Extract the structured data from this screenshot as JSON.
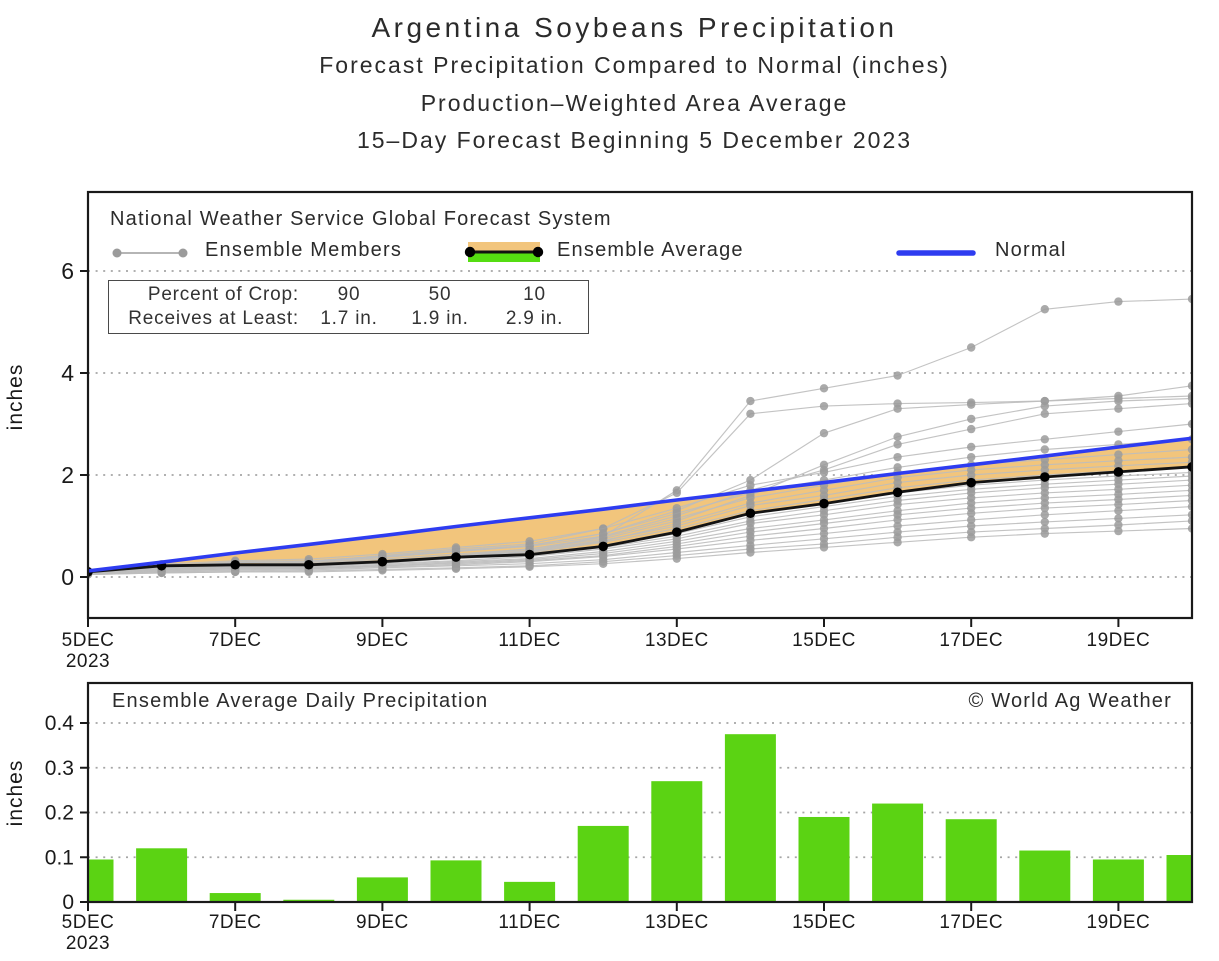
{
  "titles": {
    "main": "Argentina Soybeans Precipitation",
    "sub1": "Forecast Precipitation Compared to Normal (inches)",
    "sub2": "Production–Weighted Area Average",
    "sub3": "15–Day Forecast Beginning 5 December 2023"
  },
  "legend": {
    "header": "National Weather Service Global Forecast System",
    "members_label": "Ensemble Members",
    "average_label": "Ensemble Average",
    "normal_label": "Normal"
  },
  "crop_box": {
    "row1_label": "Percent of Crop:",
    "row2_label": "Receives at Least:",
    "cols": [
      {
        "pct": "90",
        "amt": "1.7 in."
      },
      {
        "pct": "50",
        "amt": "1.9 in."
      },
      {
        "pct": "10",
        "amt": "2.9 in."
      }
    ]
  },
  "colors": {
    "normal_line": "#2e3cf0",
    "ensemble_average_line": "#141414",
    "ensemble_member_line": "#bcbcbc",
    "ensemble_member_marker": "#9b9b9b",
    "deficit_band": "#f2c57c",
    "surplus_band": "#55dd11",
    "bar_fill": "#5bd313",
    "grid": "#8f8f8f",
    "frame": "#1a1a1a"
  },
  "axis": {
    "ylabel": "inches",
    "x_ticks": [
      {
        "day": 5,
        "label": "5DEC",
        "year": "2023"
      },
      {
        "day": 7,
        "label": "7DEC"
      },
      {
        "day": 9,
        "label": "9DEC"
      },
      {
        "day": 11,
        "label": "11DEC"
      },
      {
        "day": 13,
        "label": "13DEC"
      },
      {
        "day": 15,
        "label": "15DEC"
      },
      {
        "day": 17,
        "label": "17DEC"
      },
      {
        "day": 19,
        "label": "19DEC"
      }
    ]
  },
  "chart_data": [
    {
      "type": "line",
      "title": "Forecast cumulative precipitation vs normal",
      "ylabel": "inches",
      "ylim": [
        -0.8,
        7.55
      ],
      "yticks": [
        0,
        2,
        4,
        6
      ],
      "grid": "dotted horizontal",
      "legend_position": "top inside",
      "x_days": [
        5,
        6,
        7,
        8,
        9,
        10,
        11,
        12,
        13,
        14,
        15,
        16,
        17,
        18,
        19,
        20
      ],
      "series": [
        {
          "name": "Normal",
          "values": [
            0.12,
            0.29,
            0.47,
            0.64,
            0.81,
            0.99,
            1.16,
            1.33,
            1.51,
            1.68,
            1.85,
            2.03,
            2.2,
            2.37,
            2.55,
            2.72
          ]
        },
        {
          "name": "Ensemble Average",
          "values": [
            0.1,
            0.22,
            0.24,
            0.24,
            0.3,
            0.39,
            0.44,
            0.6,
            0.88,
            1.25,
            1.44,
            1.66,
            1.85,
            1.96,
            2.06,
            2.16
          ]
        }
      ],
      "ensemble_members": [
        [
          0.1,
          0.18,
          0.22,
          0.24,
          0.3,
          0.4,
          0.5,
          0.8,
          1.7,
          3.45,
          3.7,
          3.95,
          4.5,
          5.25,
          5.4,
          5.45
        ],
        [
          0.1,
          0.2,
          0.28,
          0.3,
          0.42,
          0.55,
          0.65,
          0.95,
          1.65,
          3.2,
          3.35,
          3.4,
          3.42,
          3.45,
          3.55,
          3.75
        ],
        [
          0.1,
          0.22,
          0.3,
          0.32,
          0.4,
          0.5,
          0.62,
          0.85,
          1.3,
          1.9,
          2.82,
          3.3,
          3.38,
          3.45,
          3.5,
          3.55
        ],
        [
          0.1,
          0.15,
          0.2,
          0.22,
          0.3,
          0.42,
          0.55,
          0.75,
          1.1,
          1.6,
          2.2,
          2.75,
          3.1,
          3.35,
          3.45,
          3.5
        ],
        [
          0.1,
          0.2,
          0.25,
          0.28,
          0.38,
          0.5,
          0.6,
          0.8,
          1.2,
          1.7,
          2.1,
          2.6,
          2.9,
          3.2,
          3.3,
          3.4
        ],
        [
          0.12,
          0.25,
          0.32,
          0.35,
          0.45,
          0.58,
          0.7,
          0.95,
          1.35,
          1.8,
          2.05,
          2.35,
          2.55,
          2.7,
          2.85,
          3.0
        ],
        [
          0.1,
          0.2,
          0.28,
          0.3,
          0.4,
          0.52,
          0.62,
          0.85,
          1.25,
          1.65,
          1.9,
          2.15,
          2.35,
          2.5,
          2.6,
          2.7
        ],
        [
          0.1,
          0.18,
          0.24,
          0.26,
          0.35,
          0.45,
          0.55,
          0.78,
          1.15,
          1.55,
          1.8,
          2.05,
          2.2,
          2.3,
          2.4,
          2.5
        ],
        [
          0.08,
          0.15,
          0.2,
          0.22,
          0.3,
          0.4,
          0.5,
          0.7,
          1.05,
          1.45,
          1.7,
          1.95,
          2.1,
          2.2,
          2.28,
          2.35
        ],
        [
          0.1,
          0.2,
          0.25,
          0.25,
          0.32,
          0.42,
          0.52,
          0.72,
          1.0,
          1.4,
          1.6,
          1.85,
          2.0,
          2.1,
          2.18,
          2.25
        ],
        [
          0.08,
          0.16,
          0.22,
          0.24,
          0.32,
          0.4,
          0.48,
          0.68,
          0.95,
          1.3,
          1.52,
          1.75,
          1.9,
          2.0,
          2.08,
          2.15
        ],
        [
          0.1,
          0.18,
          0.22,
          0.24,
          0.3,
          0.38,
          0.46,
          0.62,
          0.9,
          1.25,
          1.45,
          1.65,
          1.8,
          1.9,
          1.98,
          2.05
        ],
        [
          0.08,
          0.15,
          0.2,
          0.2,
          0.28,
          0.36,
          0.44,
          0.6,
          0.85,
          1.18,
          1.38,
          1.58,
          1.72,
          1.82,
          1.9,
          1.98
        ],
        [
          0.1,
          0.16,
          0.2,
          0.22,
          0.28,
          0.36,
          0.42,
          0.58,
          0.8,
          1.1,
          1.3,
          1.5,
          1.65,
          1.75,
          1.82,
          1.9
        ],
        [
          0.08,
          0.14,
          0.18,
          0.2,
          0.26,
          0.32,
          0.4,
          0.55,
          0.75,
          1.05,
          1.22,
          1.42,
          1.55,
          1.65,
          1.72,
          1.8
        ],
        [
          0.08,
          0.14,
          0.18,
          0.18,
          0.24,
          0.3,
          0.36,
          0.5,
          0.7,
          0.95,
          1.12,
          1.3,
          1.45,
          1.55,
          1.62,
          1.7
        ],
        [
          0.06,
          0.12,
          0.16,
          0.18,
          0.22,
          0.28,
          0.34,
          0.46,
          0.65,
          0.88,
          1.05,
          1.22,
          1.35,
          1.45,
          1.52,
          1.6
        ],
        [
          0.08,
          0.12,
          0.16,
          0.16,
          0.22,
          0.26,
          0.32,
          0.42,
          0.6,
          0.8,
          0.95,
          1.12,
          1.25,
          1.35,
          1.42,
          1.5
        ],
        [
          0.06,
          0.1,
          0.14,
          0.16,
          0.2,
          0.24,
          0.3,
          0.4,
          0.55,
          0.72,
          0.85,
          1.0,
          1.12,
          1.22,
          1.3,
          1.38
        ],
        [
          0.06,
          0.1,
          0.12,
          0.14,
          0.18,
          0.22,
          0.26,
          0.34,
          0.48,
          0.62,
          0.75,
          0.88,
          1.0,
          1.08,
          1.15,
          1.22
        ],
        [
          0.05,
          0.08,
          0.1,
          0.12,
          0.15,
          0.18,
          0.22,
          0.3,
          0.42,
          0.55,
          0.65,
          0.78,
          0.88,
          0.95,
          1.02,
          1.1
        ],
        [
          0.05,
          0.08,
          0.1,
          0.1,
          0.13,
          0.16,
          0.2,
          0.26,
          0.36,
          0.48,
          0.58,
          0.68,
          0.78,
          0.85,
          0.9,
          0.95
        ]
      ]
    },
    {
      "type": "bar",
      "title": "Ensemble Average Daily Precipitation",
      "watermark": "© World Ag Weather",
      "ylabel": "inches",
      "ylim": [
        0,
        0.487
      ],
      "yticks": [
        {
          "v": 0.0,
          "label": "0"
        },
        {
          "v": 0.1,
          "label": "0.1"
        },
        {
          "v": 0.2,
          "label": "0.2"
        },
        {
          "v": 0.3,
          "label": "0.3"
        },
        {
          "v": 0.4,
          "label": "0.4"
        }
      ],
      "x_days": [
        5,
        6,
        7,
        8,
        9,
        10,
        11,
        12,
        13,
        14,
        15,
        16,
        17,
        18,
        19,
        20
      ],
      "values": [
        0.095,
        0.12,
        0.02,
        0.005,
        0.055,
        0.093,
        0.045,
        0.17,
        0.27,
        0.375,
        0.19,
        0.22,
        0.185,
        0.115,
        0.095,
        0.105
      ]
    }
  ]
}
